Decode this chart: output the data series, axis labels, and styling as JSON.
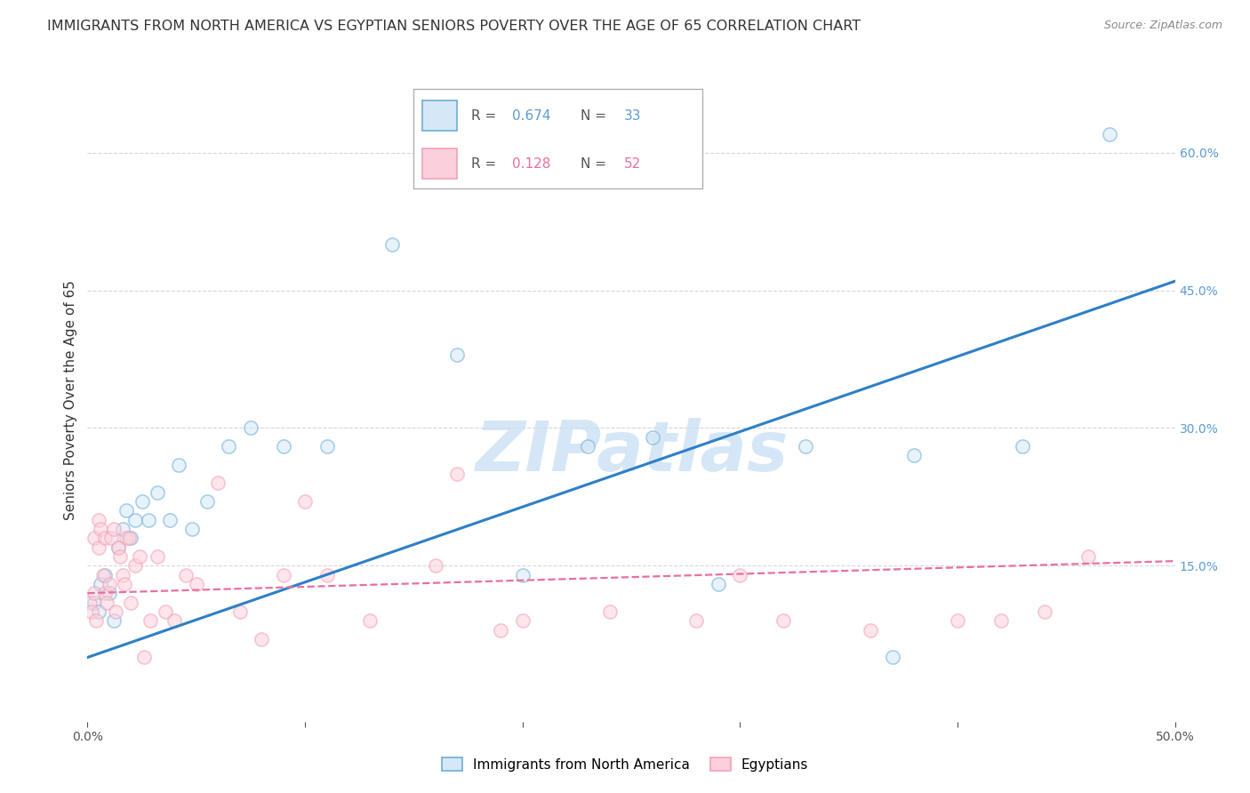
{
  "title": "IMMIGRANTS FROM NORTH AMERICA VS EGYPTIAN SENIORS POVERTY OVER THE AGE OF 65 CORRELATION CHART",
  "source": "Source: ZipAtlas.com",
  "ylabel": "Seniors Poverty Over the Age of 65",
  "xlim": [
    0.0,
    0.5
  ],
  "ylim": [
    -0.02,
    0.68
  ],
  "blue_color": "#6baed6",
  "blue_face": "#d6e8f7",
  "pink_color": "#f4a0b5",
  "pink_face": "#fbd0dc",
  "watermark": "ZIPatlas",
  "blue_scatter_x": [
    0.003,
    0.005,
    0.006,
    0.008,
    0.01,
    0.012,
    0.014,
    0.016,
    0.018,
    0.02,
    0.022,
    0.025,
    0.028,
    0.032,
    0.038,
    0.042,
    0.048,
    0.055,
    0.065,
    0.075,
    0.09,
    0.11,
    0.14,
    0.17,
    0.2,
    0.23,
    0.26,
    0.29,
    0.33,
    0.38,
    0.43,
    0.37,
    0.47
  ],
  "blue_scatter_y": [
    0.11,
    0.1,
    0.13,
    0.14,
    0.12,
    0.09,
    0.17,
    0.19,
    0.21,
    0.18,
    0.2,
    0.22,
    0.2,
    0.23,
    0.2,
    0.26,
    0.19,
    0.22,
    0.28,
    0.3,
    0.28,
    0.28,
    0.5,
    0.38,
    0.14,
    0.28,
    0.29,
    0.13,
    0.28,
    0.27,
    0.28,
    0.05,
    0.62
  ],
  "pink_scatter_x": [
    0.001,
    0.002,
    0.003,
    0.003,
    0.004,
    0.005,
    0.005,
    0.006,
    0.007,
    0.008,
    0.008,
    0.009,
    0.01,
    0.011,
    0.012,
    0.013,
    0.014,
    0.015,
    0.016,
    0.017,
    0.018,
    0.019,
    0.02,
    0.022,
    0.024,
    0.026,
    0.029,
    0.032,
    0.036,
    0.04,
    0.045,
    0.05,
    0.06,
    0.07,
    0.09,
    0.11,
    0.13,
    0.16,
    0.2,
    0.24,
    0.28,
    0.32,
    0.36,
    0.4,
    0.42,
    0.44,
    0.46,
    0.1,
    0.19,
    0.08,
    0.17,
    0.3
  ],
  "pink_scatter_y": [
    0.11,
    0.1,
    0.12,
    0.18,
    0.09,
    0.17,
    0.2,
    0.19,
    0.14,
    0.12,
    0.18,
    0.11,
    0.13,
    0.18,
    0.19,
    0.1,
    0.17,
    0.16,
    0.14,
    0.13,
    0.18,
    0.18,
    0.11,
    0.15,
    0.16,
    0.05,
    0.09,
    0.16,
    0.1,
    0.09,
    0.14,
    0.13,
    0.24,
    0.1,
    0.14,
    0.14,
    0.09,
    0.15,
    0.09,
    0.1,
    0.09,
    0.09,
    0.08,
    0.09,
    0.09,
    0.1,
    0.16,
    0.22,
    0.08,
    0.07,
    0.25,
    0.14
  ],
  "blue_line_x": [
    0.0,
    0.5
  ],
  "blue_line_y": [
    0.05,
    0.46
  ],
  "pink_line_x": [
    0.0,
    0.5
  ],
  "pink_line_y": [
    0.12,
    0.155
  ],
  "background_color": "#ffffff",
  "grid_color": "#cccccc",
  "title_fontsize": 11.5,
  "axis_label_fontsize": 11,
  "tick_fontsize": 10,
  "scatter_size": 120,
  "scatter_alpha": 0.55,
  "scatter_linewidth": 1.2
}
